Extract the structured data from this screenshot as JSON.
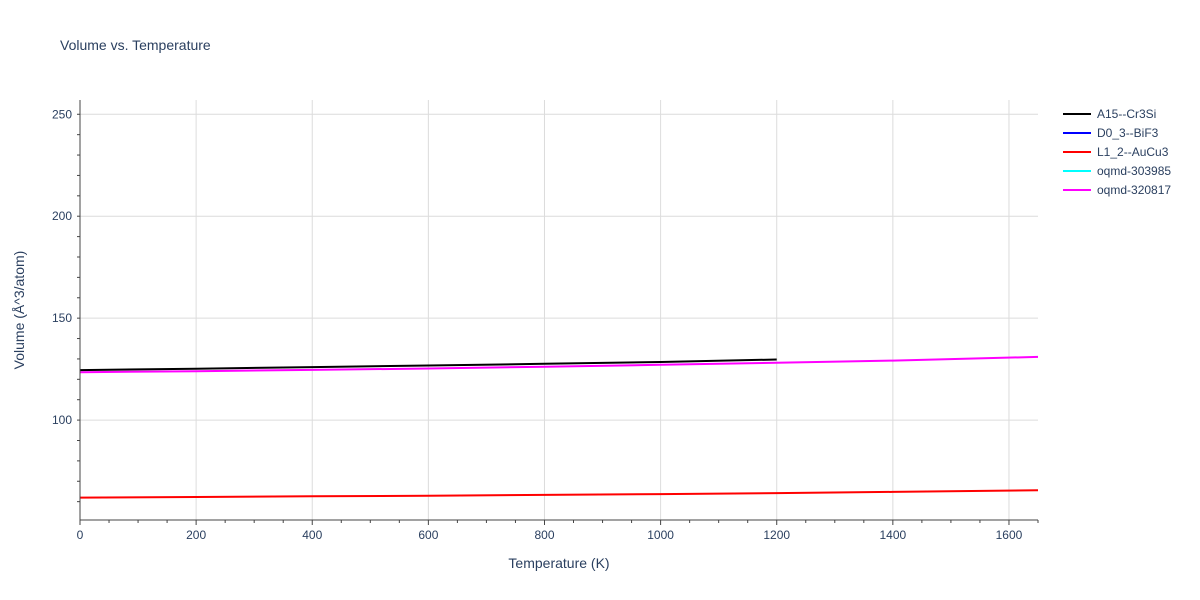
{
  "chart_data": {
    "type": "line",
    "title": "Volume vs. Temperature",
    "xlabel": "Temperature (K)",
    "ylabel": "Volume (Å^3/atom)",
    "xlim": [
      0,
      1650
    ],
    "ylim": [
      51,
      257
    ],
    "xticks": [
      0,
      200,
      400,
      600,
      800,
      1000,
      1200,
      1400,
      1600
    ],
    "yticks": [
      100,
      150,
      200,
      250
    ],
    "grid": true,
    "legend_position": "top-right",
    "series": [
      {
        "name": "A15--Cr3Si",
        "color": "#000000",
        "x": [
          0,
          200,
          400,
          600,
          800,
          1000,
          1200
        ],
        "y": [
          124.5,
          125.2,
          126.0,
          126.8,
          127.6,
          128.5,
          129.7
        ]
      },
      {
        "name": "D0_3--BiF3",
        "color": "#0000ff",
        "x": [],
        "y": []
      },
      {
        "name": "L1_2--AuCu3",
        "color": "#ff0000",
        "x": [
          0,
          200,
          400,
          600,
          800,
          1000,
          1200,
          1400,
          1650
        ],
        "y": [
          62.0,
          62.3,
          62.6,
          62.9,
          63.3,
          63.7,
          64.2,
          64.8,
          65.6
        ]
      },
      {
        "name": "oqmd-303985",
        "color": "#00ffff",
        "x": [],
        "y": []
      },
      {
        "name": "oqmd-320817",
        "color": "#ff00ff",
        "x": [
          0,
          200,
          400,
          600,
          800,
          1000,
          1200,
          1400,
          1650
        ],
        "y": [
          123.5,
          124.0,
          124.6,
          125.3,
          126.2,
          127.1,
          128.1,
          129.2,
          131.0
        ]
      }
    ]
  }
}
